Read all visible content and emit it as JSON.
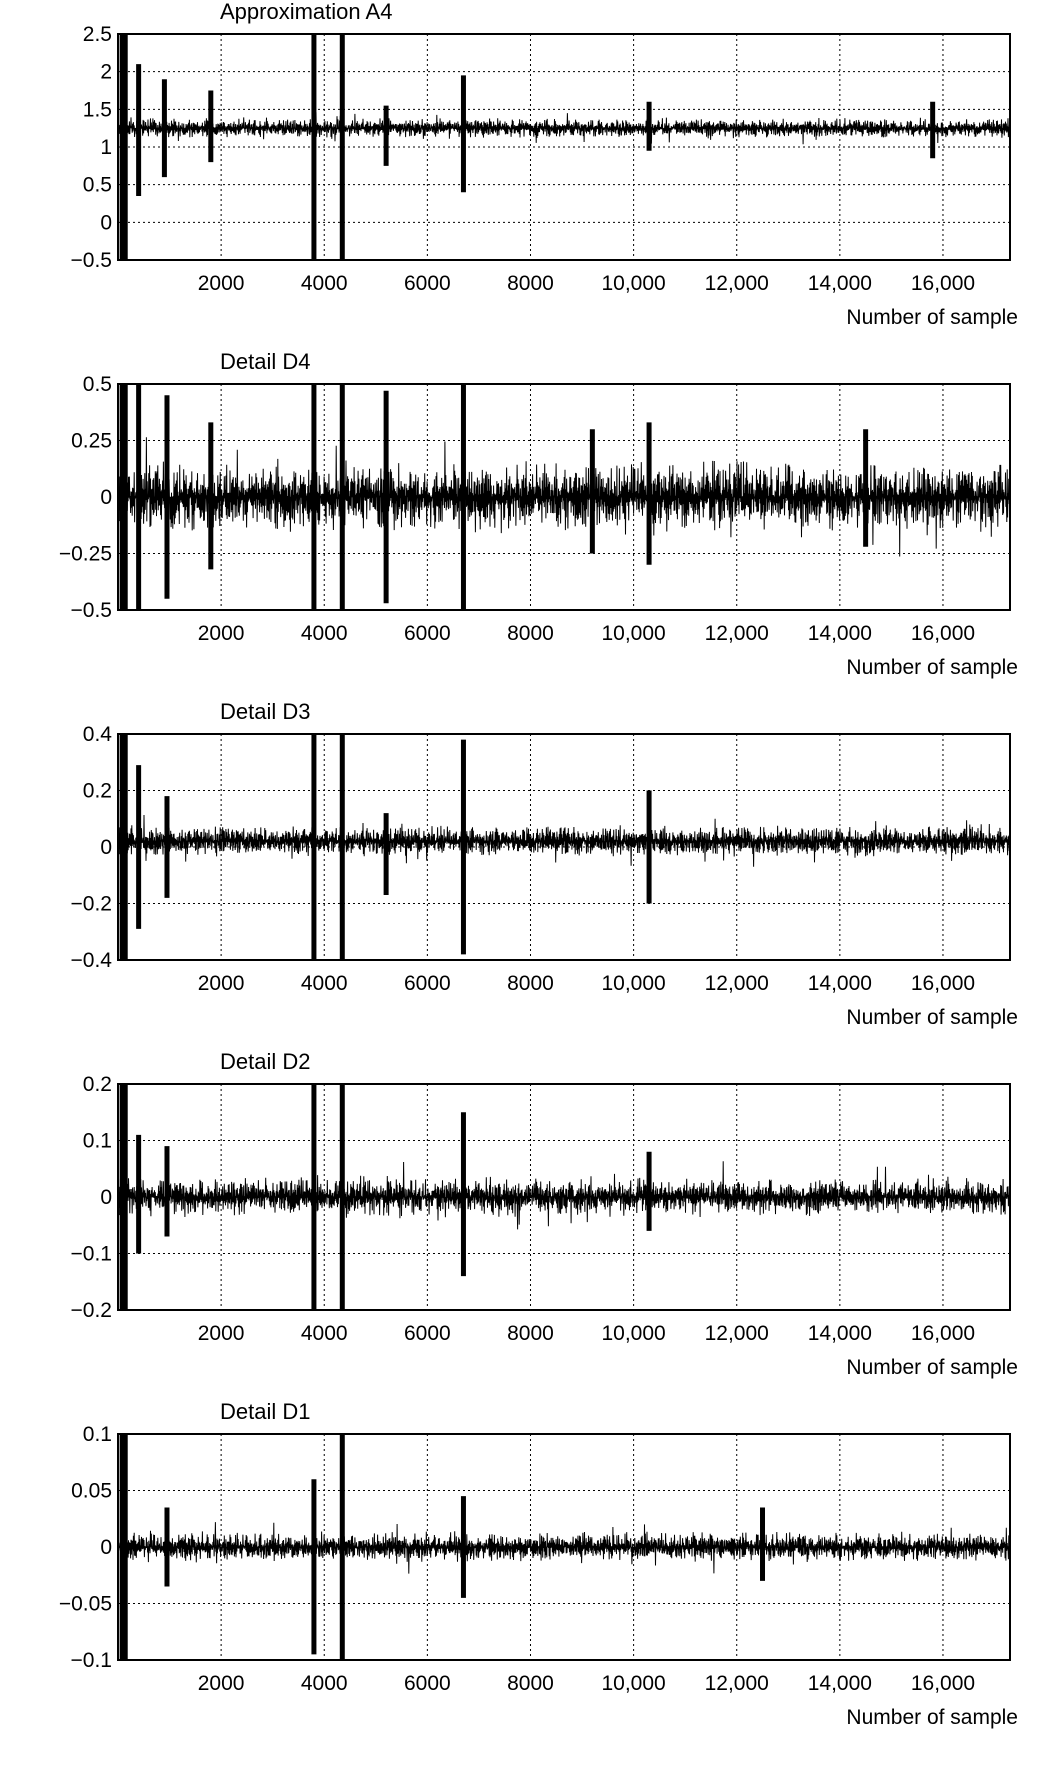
{
  "chart_data": [
    {
      "type": "line",
      "title": "Approximation A4",
      "xlabel": "Number of sample",
      "ylabel": "",
      "xlim": [
        0,
        17300
      ],
      "ylim": [
        -0.5,
        2.5
      ],
      "xticks": [
        2000,
        4000,
        6000,
        8000,
        10000,
        12000,
        14000,
        16000
      ],
      "xtick_labels": [
        "2000",
        "4000",
        "6000",
        "8000",
        "10,000",
        "12,000",
        "14,000",
        "16,000"
      ],
      "yticks": [
        -0.5,
        0,
        0.5,
        1,
        1.5,
        2,
        2.5
      ],
      "ytick_labels": [
        "−0.5",
        "0",
        "0.5",
        "1",
        "1.5",
        "2",
        "2.5"
      ],
      "grid": true,
      "baseline": 1.25,
      "noise_amplitude": 0.12,
      "spikes": [
        {
          "x": 80,
          "min": -0.5,
          "max": 2.5
        },
        {
          "x": 140,
          "min": -0.5,
          "max": 2.5
        },
        {
          "x": 400,
          "min": 0.35,
          "max": 2.1
        },
        {
          "x": 900,
          "min": 0.6,
          "max": 1.9
        },
        {
          "x": 1800,
          "min": 0.8,
          "max": 1.75
        },
        {
          "x": 3800,
          "min": -0.5,
          "max": 2.5
        },
        {
          "x": 4350,
          "min": -0.5,
          "max": 2.5
        },
        {
          "x": 5200,
          "min": 0.75,
          "max": 1.55
        },
        {
          "x": 6700,
          "min": 0.4,
          "max": 1.95
        },
        {
          "x": 10300,
          "min": 0.95,
          "max": 1.6
        },
        {
          "x": 15800,
          "min": 0.85,
          "max": 1.6
        }
      ]
    },
    {
      "type": "line",
      "title": "Detail D4",
      "xlabel": "Number of sample",
      "ylabel": "",
      "xlim": [
        0,
        17300
      ],
      "ylim": [
        -0.5,
        0.5
      ],
      "xticks": [
        2000,
        4000,
        6000,
        8000,
        10000,
        12000,
        14000,
        16000
      ],
      "xtick_labels": [
        "2000",
        "4000",
        "6000",
        "8000",
        "10,000",
        "12,000",
        "14,000",
        "16,000"
      ],
      "yticks": [
        -0.5,
        -0.25,
        0,
        0.25,
        0.5
      ],
      "ytick_labels": [
        "−0.5",
        "−0.25",
        "0",
        "0.25",
        "0.5"
      ],
      "grid": true,
      "baseline": 0,
      "noise_amplitude": 0.14,
      "spikes": [
        {
          "x": 80,
          "min": -0.5,
          "max": 0.5
        },
        {
          "x": 140,
          "min": -0.5,
          "max": 0.5
        },
        {
          "x": 400,
          "min": -0.5,
          "max": 0.5
        },
        {
          "x": 950,
          "min": -0.45,
          "max": 0.45
        },
        {
          "x": 1800,
          "min": -0.32,
          "max": 0.33
        },
        {
          "x": 3800,
          "min": -0.5,
          "max": 0.5
        },
        {
          "x": 4350,
          "min": -0.5,
          "max": 0.5
        },
        {
          "x": 5200,
          "min": -0.47,
          "max": 0.47
        },
        {
          "x": 6700,
          "min": -0.5,
          "max": 0.5
        },
        {
          "x": 9200,
          "min": -0.25,
          "max": 0.3
        },
        {
          "x": 10300,
          "min": -0.3,
          "max": 0.33
        },
        {
          "x": 14500,
          "min": -0.22,
          "max": 0.3
        }
      ]
    },
    {
      "type": "line",
      "title": "Detail D3",
      "xlabel": "Number of sample",
      "ylabel": "",
      "xlim": [
        0,
        17300
      ],
      "ylim": [
        -0.4,
        0.4
      ],
      "xticks": [
        2000,
        4000,
        6000,
        8000,
        10000,
        12000,
        14000,
        16000
      ],
      "xtick_labels": [
        "2000",
        "4000",
        "6000",
        "8000",
        "10,000",
        "12,000",
        "14,000",
        "16,000"
      ],
      "yticks": [
        -0.4,
        -0.2,
        0,
        0.2,
        0.4
      ],
      "ytick_labels": [
        "−0.4",
        "−0.2",
        "0",
        "0.2",
        "0.4"
      ],
      "grid": true,
      "baseline": 0.02,
      "noise_amplitude": 0.05,
      "spikes": [
        {
          "x": 80,
          "min": -0.4,
          "max": 0.4
        },
        {
          "x": 140,
          "min": -0.4,
          "max": 0.4
        },
        {
          "x": 400,
          "min": -0.29,
          "max": 0.29
        },
        {
          "x": 950,
          "min": -0.18,
          "max": 0.18
        },
        {
          "x": 3800,
          "min": -0.4,
          "max": 0.4
        },
        {
          "x": 4350,
          "min": -0.4,
          "max": 0.4
        },
        {
          "x": 5200,
          "min": -0.17,
          "max": 0.12
        },
        {
          "x": 6700,
          "min": -0.38,
          "max": 0.38
        },
        {
          "x": 10300,
          "min": -0.2,
          "max": 0.2
        }
      ]
    },
    {
      "type": "line",
      "title": "Detail D2",
      "xlabel": "Number of sample",
      "ylabel": "",
      "xlim": [
        0,
        17300
      ],
      "ylim": [
        -0.2,
        0.2
      ],
      "xticks": [
        2000,
        4000,
        6000,
        8000,
        10000,
        12000,
        14000,
        16000
      ],
      "xtick_labels": [
        "2000",
        "4000",
        "6000",
        "8000",
        "10,000",
        "12,000",
        "14,000",
        "16,000"
      ],
      "yticks": [
        -0.2,
        -0.1,
        0,
        0.1,
        0.2
      ],
      "ytick_labels": [
        "−0.2",
        "−0.1",
        "0",
        "0.1",
        "0.2"
      ],
      "grid": true,
      "baseline": 0,
      "noise_amplitude": 0.03,
      "spikes": [
        {
          "x": 80,
          "min": -0.2,
          "max": 0.2
        },
        {
          "x": 140,
          "min": -0.2,
          "max": 0.2
        },
        {
          "x": 400,
          "min": -0.1,
          "max": 0.11
        },
        {
          "x": 950,
          "min": -0.07,
          "max": 0.09
        },
        {
          "x": 3800,
          "min": -0.2,
          "max": 0.2
        },
        {
          "x": 4350,
          "min": -0.2,
          "max": 0.2
        },
        {
          "x": 6700,
          "min": -0.14,
          "max": 0.15
        },
        {
          "x": 10300,
          "min": -0.06,
          "max": 0.08
        }
      ]
    },
    {
      "type": "line",
      "title": "Detail D1",
      "xlabel": "Number of sample",
      "ylabel": "",
      "xlim": [
        0,
        17300
      ],
      "ylim": [
        -0.1,
        0.1
      ],
      "xticks": [
        2000,
        4000,
        6000,
        8000,
        10000,
        12000,
        14000,
        16000
      ],
      "xtick_labels": [
        "2000",
        "4000",
        "6000",
        "8000",
        "10,000",
        "12,000",
        "14,000",
        "16,000"
      ],
      "yticks": [
        -0.1,
        -0.05,
        0,
        0.05,
        0.1
      ],
      "ytick_labels": [
        "−0.1",
        "−0.05",
        "0",
        "0.05",
        "0.1"
      ],
      "grid": true,
      "baseline": 0,
      "noise_amplitude": 0.012,
      "spikes": [
        {
          "x": 80,
          "min": -0.1,
          "max": 0.1
        },
        {
          "x": 140,
          "min": -0.1,
          "max": 0.1
        },
        {
          "x": 950,
          "min": -0.035,
          "max": 0.035
        },
        {
          "x": 3800,
          "min": -0.095,
          "max": 0.06
        },
        {
          "x": 4350,
          "min": -0.1,
          "max": 0.1
        },
        {
          "x": 6700,
          "min": -0.045,
          "max": 0.045
        },
        {
          "x": 12500,
          "min": -0.03,
          "max": 0.035
        }
      ]
    }
  ]
}
